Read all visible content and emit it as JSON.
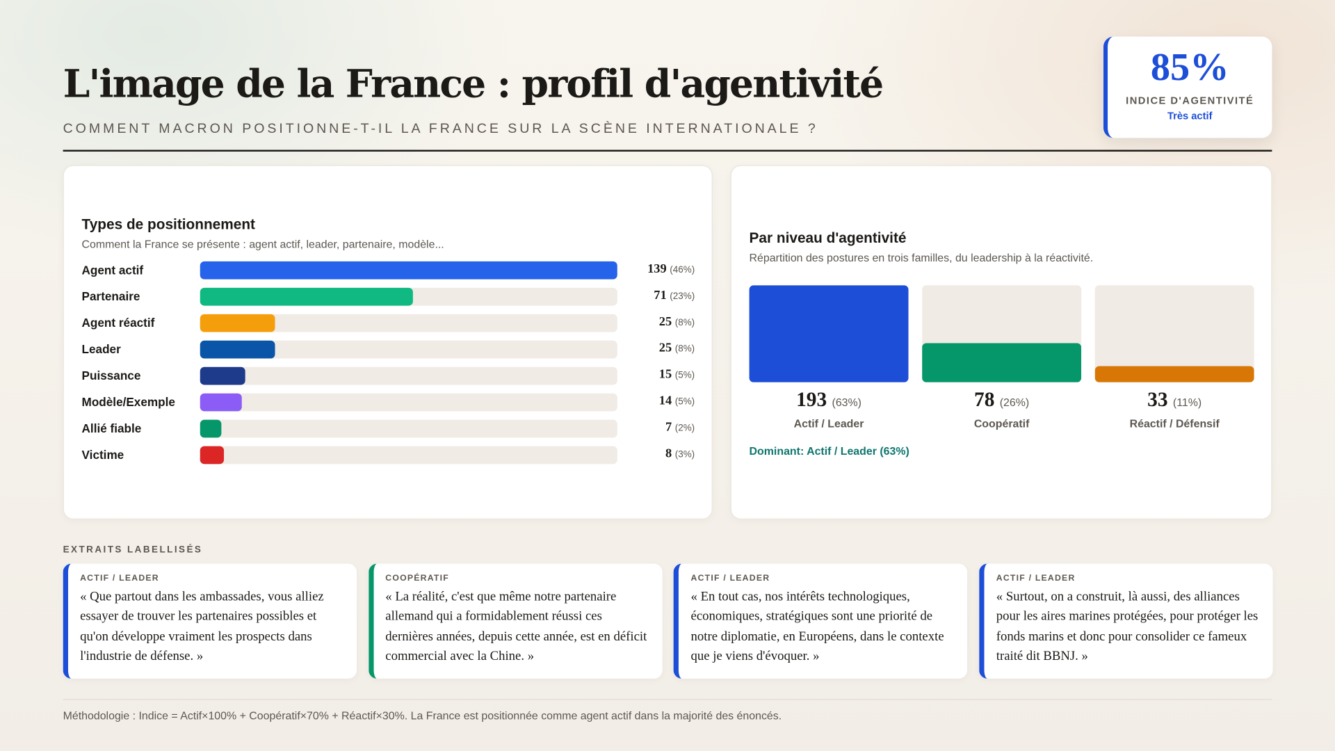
{
  "header": {
    "title": "L'image de la France : profil d'agentivité",
    "subtitle": "COMMENT MACRON POSITIONNE-T-IL LA FRANCE SUR LA SCÈNE INTERNATIONALE ?"
  },
  "kpi": {
    "value": "85%",
    "label": "INDICE D'AGENTIVITÉ",
    "status": "Très actif",
    "color": "#1d4ed8"
  },
  "chart_data": [
    {
      "type": "bar",
      "orientation": "horizontal",
      "title": "Types de positionnement",
      "subtitle": "Comment la France se présente : agent actif, leader, partenaire, modèle...",
      "categories": [
        "Agent actif",
        "Partenaire",
        "Agent réactif",
        "Leader",
        "Puissance",
        "Modèle/Exemple",
        "Allié fiable",
        "Victime"
      ],
      "values": [
        139,
        71,
        25,
        25,
        15,
        14,
        7,
        8
      ],
      "percent_labels": [
        "(46%)",
        "(23%)",
        "(8%)",
        "(8%)",
        "(5%)",
        "(5%)",
        "(2%)",
        "(3%)"
      ],
      "colors": [
        "#2563eb",
        "#10b981",
        "#f59e0b",
        "#0b55a8",
        "#1e3a8a",
        "#8b5cf6",
        "#059669",
        "#dc2626"
      ],
      "xlim": [
        0,
        139
      ]
    },
    {
      "type": "bar",
      "title": "Par niveau d'agentivité",
      "subtitle": "Répartition des postures en trois familles, du leadership à la réactivité.",
      "categories": [
        "Actif / Leader",
        "Coopératif",
        "Réactif / Défensif"
      ],
      "values": [
        193,
        78,
        33
      ],
      "percent_labels": [
        "(63%)",
        "(26%)",
        "(11%)"
      ],
      "colors": [
        "#1d4ed8",
        "#059669",
        "#d97706"
      ],
      "ylim": [
        0,
        193
      ],
      "annotation": "Dominant: Actif / Leader (63%)"
    }
  ],
  "excerpts": {
    "label": "EXTRAITS LABELLISÉS",
    "items": [
      {
        "tag": "ACTIF / LEADER",
        "color": "#1d4ed8",
        "text": "« Que partout dans les ambassades, vous alliez essayer de trouver les partenaires possibles et qu'on développe vraiment les prospects dans l'industrie de défense. »"
      },
      {
        "tag": "COOPÉRATIF",
        "color": "#059669",
        "text": "« La réalité, c'est que même notre partenaire allemand qui a formidablement réussi ces dernières années, depuis cette année, est en déficit commercial avec la Chine. »"
      },
      {
        "tag": "ACTIF / LEADER",
        "color": "#1d4ed8",
        "text": "« En tout cas, nos intérêts technologiques, économiques, stratégiques sont une priorité de notre diplomatie, en Européens, dans le contexte que je viens d'évoquer. »"
      },
      {
        "tag": "ACTIF / LEADER",
        "color": "#1d4ed8",
        "text": "« Surtout, on a construit, là aussi, des alliances pour les aires marines protégées, pour protéger les fonds marins et donc pour consolider ce fameux traité dit BBNJ. »"
      }
    ]
  },
  "footer": "Méthodologie : Indice = Actif×100% + Coopératif×70% + Réactif×30%. La France est positionnée comme agent actif dans la majorité des énoncés."
}
